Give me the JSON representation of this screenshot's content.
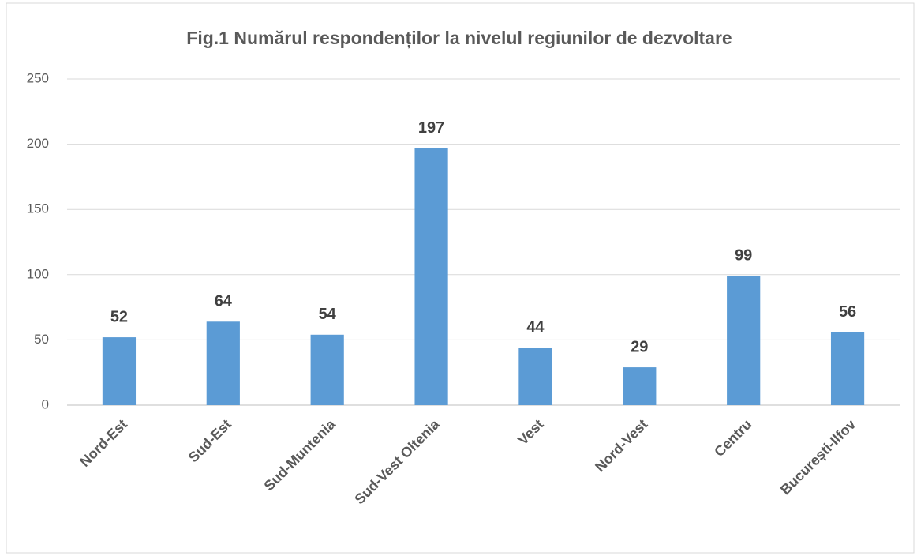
{
  "chart_data": {
    "type": "bar",
    "title": "Fig.1 Numărul respondenților la nivelul regiunilor de dezvoltare",
    "categories": [
      "Nord-Est",
      "Sud-Est",
      "Sud-Muntenia",
      "Sud-Vest Oltenia",
      "Vest",
      "Nord-Vest",
      "Centru",
      "București-Ilfov"
    ],
    "values": [
      52,
      64,
      54,
      197,
      44,
      29,
      99,
      56
    ],
    "color": "#5b9bd5",
    "ylim": [
      0,
      250
    ],
    "yticks": [
      0,
      50,
      100,
      150,
      200,
      250
    ],
    "grid": true
  }
}
